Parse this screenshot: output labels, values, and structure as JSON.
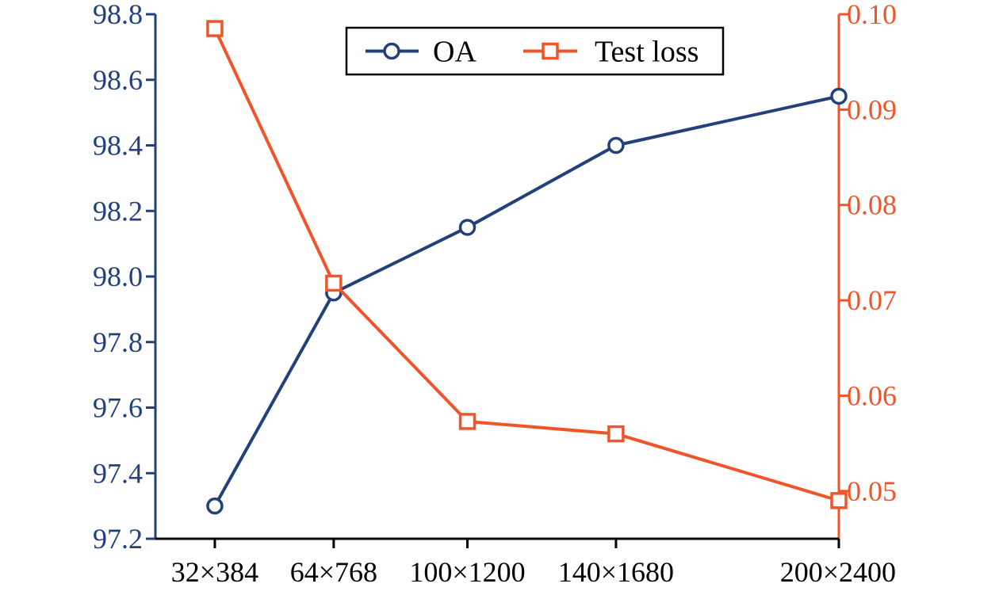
{
  "chart_data": {
    "type": "line",
    "categories": [
      "32×384",
      "64×768",
      "100×1200",
      "140×1680",
      "200×2400"
    ],
    "x": [
      32,
      64,
      100,
      140,
      200
    ],
    "series": [
      {
        "name": "OA",
        "axis": "left",
        "marker": "circle",
        "color": "#22407a",
        "values": [
          97.3,
          97.95,
          98.15,
          98.4,
          98.55
        ]
      },
      {
        "name": "Test loss",
        "axis": "right",
        "marker": "square",
        "color": "#f0552a",
        "values": [
          0.0985,
          0.0718,
          0.0573,
          0.056,
          0.049
        ]
      }
    ],
    "ylim_left": [
      97.2,
      98.8
    ],
    "yticks_left": [
      "97.2",
      "97.4",
      "97.6",
      "97.8",
      "98.0",
      "98.2",
      "98.4",
      "98.6",
      "98.8"
    ],
    "ylim_right": [
      0.045,
      0.1
    ],
    "yticks_right": [
      "0.05",
      "0.06",
      "0.07",
      "0.08",
      "0.09",
      "0.10"
    ],
    "legend": "top-center",
    "grid": false,
    "title": "",
    "xlabel": "",
    "ylabel": ""
  }
}
